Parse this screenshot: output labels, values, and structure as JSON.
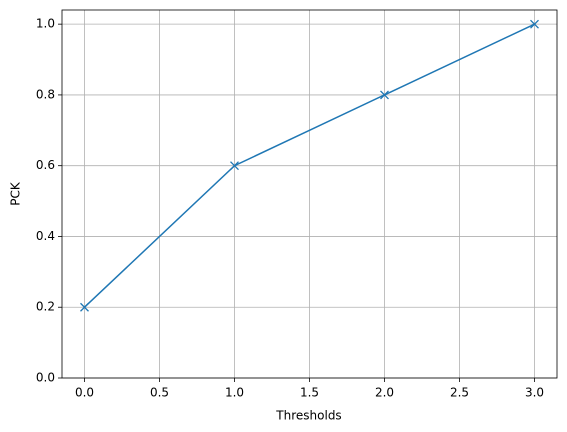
{
  "chart_data": {
    "type": "line",
    "x_label": "Thresholds",
    "y_label": "PCK",
    "x": [
      0,
      1,
      2,
      3
    ],
    "series": [
      {
        "color": "#1f77b4",
        "values": [
          0.2,
          0.6,
          0.8,
          1.0
        ]
      }
    ],
    "xlim": [
      -0.15,
      3.15
    ],
    "xticks": [
      {
        "value": 0,
        "label": "0.0"
      },
      0.5,
      {
        "value": 1,
        "label": "1.0"
      },
      1.5,
      {
        "value": 2,
        "label": "2.0"
      },
      2.5,
      {
        "value": 3,
        "label": "3.0"
      }
    ],
    "ylim": [
      0,
      1.04
    ],
    "yticks": [
      {
        "value": 0,
        "label": "0.0"
      },
      0.2,
      0.4,
      0.6,
      0.8,
      {
        "value": 1,
        "label": "1.0"
      }
    ],
    "grid": true,
    "marker": "x"
  }
}
